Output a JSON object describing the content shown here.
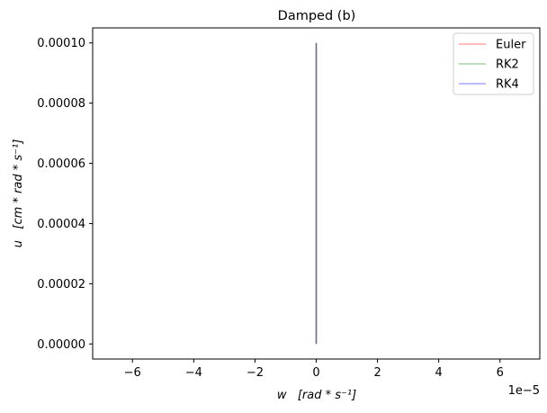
{
  "chart_data": {
    "type": "line",
    "title": "Damped (b)",
    "xlabel": "w   [rad * s⁻¹]",
    "ylabel": "u   [cm * rad * s⁻¹]",
    "x_offset_label": "1e−5",
    "xlim": [
      -7.3,
      7.3
    ],
    "ylim": [
      -5e-06,
      0.000105
    ],
    "x_tick_values": [
      -6,
      -4,
      -2,
      0,
      2,
      4,
      6
    ],
    "x_tick_labels": [
      "−6",
      "−4",
      "−2",
      "0",
      "2",
      "4",
      "6"
    ],
    "y_tick_values": [
      0,
      2e-05,
      4e-05,
      6e-05,
      8e-05,
      0.0001
    ],
    "y_tick_labels": [
      "0.00000",
      "0.00002",
      "0.00004",
      "0.00006",
      "0.00008",
      "0.00010"
    ],
    "grid": false,
    "legend_position": "top-right",
    "series": [
      {
        "name": "Euler",
        "color": "#ff0000",
        "opacity": 0.35,
        "x": [
          0,
          0
        ],
        "y": [
          0,
          0.0001
        ]
      },
      {
        "name": "RK2",
        "color": "#008000",
        "opacity": 0.35,
        "x": [
          0,
          0
        ],
        "y": [
          0,
          0.0001
        ]
      },
      {
        "name": "RK4",
        "color": "#0000ff",
        "opacity": 0.35,
        "x": [
          0,
          0
        ],
        "y": [
          0,
          0.0001
        ]
      }
    ]
  }
}
